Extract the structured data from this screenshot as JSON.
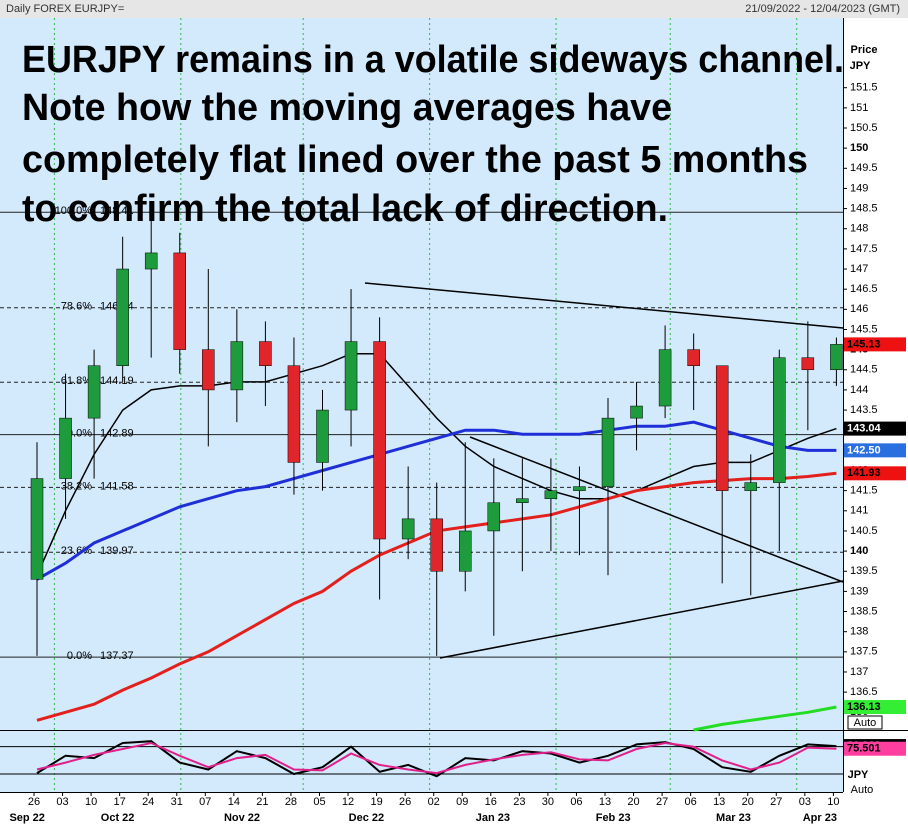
{
  "chart_data": {
    "type": "candlestick",
    "header_left": "Daily FOREX EURJPY=",
    "header_right": "21/09/2022 - 12/04/2023 (GMT)",
    "title_lines": [
      "EURJPY remains in a volatile sideways channel.",
      "Note how the moving averages have",
      "completely flat lined over the past 5 months",
      "to confirm the total lack of direction."
    ],
    "axis_title": "Price",
    "currency": "JPY",
    "auto": "Auto",
    "categories": [
      "26",
      "03",
      "10",
      "17",
      "24",
      "31",
      "07",
      "14",
      "21",
      "28",
      "05",
      "12",
      "19",
      "26",
      "02",
      "09",
      "16",
      "23",
      "30",
      "06",
      "13",
      "20",
      "27",
      "06",
      "13",
      "20",
      "27",
      "03",
      "10"
    ],
    "months": [
      "Sep 22",
      "Oct 22",
      "Nov 22",
      "Dec 22",
      "Jan 23",
      "Feb 23",
      "Mar 23",
      "Apr 23"
    ],
    "open": [
      139.3,
      141.8,
      143.3,
      144.6,
      147.0,
      147.4,
      145.0,
      144.0,
      145.2,
      144.6,
      142.2,
      143.5,
      145.2,
      140.3,
      140.8,
      139.5,
      140.5,
      141.2,
      141.3,
      141.5,
      141.6,
      143.3,
      143.6,
      145.0,
      144.6,
      141.5,
      141.7,
      144.8,
      144.5
    ],
    "high": [
      142.7,
      144.4,
      145.0,
      147.8,
      148.3,
      147.9,
      147.0,
      146.0,
      145.7,
      145.3,
      144.0,
      146.5,
      145.8,
      142.1,
      141.7,
      142.7,
      142.3,
      142.3,
      142.3,
      142.1,
      143.8,
      144.2,
      145.6,
      145.4,
      144.6,
      142.4,
      145.0,
      145.7,
      145.3
    ],
    "low": [
      137.4,
      140.8,
      141.8,
      144.2,
      144.8,
      144.4,
      142.6,
      143.2,
      143.6,
      141.4,
      141.5,
      142.6,
      138.8,
      139.8,
      137.4,
      139.0,
      137.9,
      139.5,
      140.0,
      139.9,
      139.4,
      142.5,
      143.3,
      143.5,
      139.2,
      138.9,
      140.0,
      143.0,
      144.1
    ],
    "close": [
      141.8,
      143.3,
      144.6,
      147.0,
      147.4,
      145.0,
      144.0,
      145.2,
      144.6,
      142.2,
      143.5,
      145.2,
      140.3,
      140.8,
      139.5,
      140.5,
      141.2,
      141.3,
      141.5,
      141.6,
      143.3,
      143.6,
      145.0,
      144.6,
      141.5,
      141.7,
      144.8,
      144.5,
      145.13
    ],
    "up_color": "#1e9b3c",
    "down_color": "#e0262b",
    "overlays": [
      {
        "color": "#000000",
        "values": [
          139.4,
          141.0,
          142.4,
          143.5,
          144.0,
          144.1,
          144.1,
          144.2,
          144.2,
          144.4,
          144.6,
          144.9,
          144.9,
          144.1,
          143.3,
          142.6,
          142.1,
          141.8,
          141.5,
          141.3,
          141.3,
          141.5,
          141.8,
          142.1,
          142.2,
          142.2,
          142.5,
          142.8,
          143.04
        ]
      },
      {
        "color": "#1f2fd8",
        "values": [
          139.3,
          139.7,
          140.2,
          140.5,
          140.8,
          141.1,
          141.3,
          141.5,
          141.6,
          141.8,
          142.0,
          142.2,
          142.4,
          142.6,
          142.8,
          143.0,
          143.0,
          142.9,
          142.9,
          142.9,
          143.0,
          143.1,
          143.1,
          143.2,
          143.0,
          142.8,
          142.6,
          142.5,
          142.5
        ]
      },
      {
        "color": "#e3201b",
        "values": [
          135.8,
          136.0,
          136.2,
          136.55,
          136.85,
          137.2,
          137.5,
          137.9,
          138.3,
          138.7,
          139.0,
          139.5,
          139.9,
          140.2,
          140.5,
          140.6,
          140.7,
          140.8,
          140.9,
          141.1,
          141.3,
          141.5,
          141.6,
          141.7,
          141.75,
          141.8,
          141.8,
          141.85,
          141.93
        ]
      },
      {
        "color": "#22dd22",
        "values": [
          null,
          null,
          null,
          null,
          null,
          null,
          null,
          null,
          null,
          null,
          null,
          null,
          null,
          null,
          null,
          null,
          null,
          null,
          null,
          null,
          null,
          null,
          null,
          135.56,
          135.7,
          135.8,
          135.9,
          136.0,
          136.13
        ]
      }
    ],
    "fib_levels": [
      {
        "label": "100.0%",
        "value": 148.41,
        "dash": false
      },
      {
        "label": "78.6%",
        "value": 146.04,
        "dash": true
      },
      {
        "label": "61.8%",
        "value": 144.19,
        "dash": true
      },
      {
        "label": "50.0%",
        "value": 142.89,
        "dash": false
      },
      {
        "label": "38.2%",
        "value": 141.58,
        "dash": true
      },
      {
        "label": "23.6%",
        "value": 139.97,
        "dash": true
      },
      {
        "label": "0.0%",
        "value": 137.37,
        "dash": false
      }
    ],
    "ylim": [
      135.56,
      153.23
    ],
    "yticks": [
      136,
      136.5,
      137,
      137.5,
      138,
      138.5,
      139,
      139.5,
      140,
      140.5,
      141,
      141.5,
      142,
      142.5,
      143,
      143.5,
      144,
      144.5,
      145,
      145.5,
      146,
      146.5,
      147,
      147.5,
      148,
      148.5,
      149,
      149.5,
      150,
      150.5,
      151,
      151.5
    ],
    "last_tags": [
      {
        "value": 145.13,
        "color": "#ee1111",
        "text_color": "#000000"
      },
      {
        "value": 143.04,
        "color": "#000000",
        "text_color": "#ffffff"
      },
      {
        "value": 142.5,
        "label": "142.50",
        "color": "#2a6fe0",
        "text_color": "#ffffff"
      },
      {
        "value": 141.93,
        "color": "#ee1111",
        "text_color": "#000000"
      },
      {
        "value": 136.13,
        "color": "#33ee33",
        "text_color": "#000000"
      }
    ],
    "oscillator": {
      "ylim": [
        -15,
        110
      ],
      "levels": [
        20,
        80
      ],
      "currency": "JPY",
      "auto": "Auto",
      "series": [
        {
          "color": "#000000",
          "values": [
            22,
            60,
            55,
            88,
            92,
            45,
            30,
            70,
            55,
            20,
            35,
            80,
            25,
            40,
            15,
            55,
            50,
            70,
            65,
            45,
            60,
            85,
            90,
            75,
            35,
            25,
            60,
            85,
            81.368
          ]
        },
        {
          "color": "#e0208a",
          "values": [
            30,
            45,
            62,
            75,
            88,
            60,
            35,
            55,
            62,
            30,
            28,
            65,
            40,
            30,
            22,
            40,
            52,
            62,
            68,
            52,
            50,
            75,
            88,
            80,
            50,
            30,
            45,
            78,
            75.501
          ]
        }
      ],
      "tags": [
        {
          "value": 81.368,
          "color": "#000000",
          "text_color": "#ffffff"
        },
        {
          "value": 75.501,
          "color": "#ff3fa0",
          "text_color": "#000000"
        }
      ]
    }
  }
}
